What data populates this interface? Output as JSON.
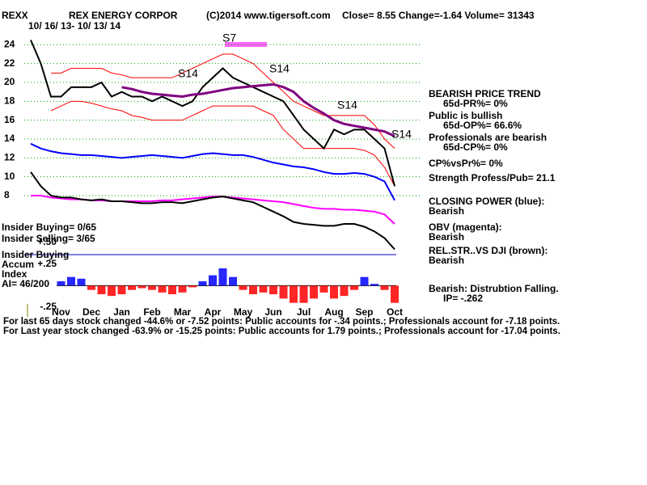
{
  "chart_data": {
    "type": "line",
    "header": [
      "REXX",
      "REX ENERGY CORPOR",
      "(C)2014 www.tigersoft.com",
      "Close=  8.55  Change=-1.64 Volume= 31343"
    ],
    "date_range": "10/ 16/ 13- 10/ 13/ 14",
    "categories": [
      null,
      null,
      null,
      "Nov",
      null,
      null,
      "Dec",
      null,
      null,
      "Jan",
      null,
      null,
      "Feb",
      null,
      null,
      "Mar",
      null,
      null,
      "Apr",
      null,
      null,
      "May",
      null,
      null,
      "Jun",
      null,
      null,
      "Jul",
      null,
      null,
      "Aug",
      null,
      null,
      "Sep",
      null,
      null,
      "Oct"
    ],
    "ylim": [
      2,
      26
    ],
    "yticks": [
      8,
      10,
      12,
      14,
      16,
      18,
      20,
      22,
      24
    ],
    "grid": true,
    "grid_color": "#00a000",
    "series": [
      {
        "color": "#ff0000",
        "values": [
          null,
          null,
          21,
          21,
          21.5,
          21.5,
          21.5,
          21.5,
          21,
          20.8,
          20.5,
          20.5,
          20.5,
          20.5,
          20.5,
          21,
          21.5,
          22,
          22.5,
          23,
          23,
          22.5,
          22,
          21,
          20,
          19,
          18,
          17.5,
          17,
          16.5,
          16.5,
          16.5,
          16.5,
          16.5,
          15.5,
          14,
          13
        ]
      },
      {
        "color": "#ff0000",
        "values": [
          null,
          null,
          17,
          17.5,
          18,
          18,
          17.8,
          17.5,
          17.2,
          17,
          16.5,
          16.3,
          16,
          16,
          16,
          16,
          16.5,
          17,
          17.5,
          17.5,
          17.5,
          17.5,
          17.5,
          17,
          16.5,
          15,
          14,
          13,
          13,
          13,
          13,
          13,
          13,
          12.8,
          12.3,
          11,
          9
        ]
      },
      {
        "color": "#000000",
        "values": [
          24.5,
          22,
          18.5,
          18.5,
          19.5,
          19.5,
          19.5,
          20,
          18.5,
          19,
          18.5,
          18.5,
          18,
          18.5,
          18,
          17.5,
          18,
          19.5,
          20.5,
          21.5,
          20.5,
          20,
          19.5,
          19,
          18.5,
          18,
          16.5,
          15,
          14,
          13,
          15,
          14.5,
          15,
          15,
          14,
          13,
          9
        ]
      },
      {
        "color": "#800080",
        "values": [
          null,
          null,
          null,
          null,
          null,
          null,
          null,
          null,
          null,
          19.5,
          19.3,
          19,
          18.8,
          18.7,
          18.6,
          18.5,
          18.7,
          18.8,
          19,
          19.2,
          19.4,
          19.5,
          19.6,
          19.7,
          19.8,
          19.5,
          19,
          18,
          17.3,
          16.7,
          16,
          15.6,
          15.4,
          15.2,
          15,
          14.8,
          14.3
        ]
      },
      {
        "color": "#0000ff",
        "values": [
          13.5,
          13,
          12.7,
          12.5,
          12.4,
          12.3,
          12.3,
          12.2,
          12.1,
          12,
          12.1,
          12.2,
          12.3,
          12.2,
          12.1,
          12,
          12.2,
          12.4,
          12.5,
          12.4,
          12.3,
          12.3,
          12.1,
          11.8,
          11.5,
          11.3,
          11.1,
          11,
          10.8,
          10.5,
          10.3,
          10.3,
          10.4,
          10.3,
          10,
          9.5,
          7.5
        ]
      },
      {
        "color": "#ff00ff",
        "values": [
          8,
          8,
          7.8,
          7.7,
          7.6,
          7.6,
          7.5,
          7.5,
          7.4,
          7.4,
          7.4,
          7.4,
          7.4,
          7.5,
          7.5,
          7.6,
          7.7,
          7.8,
          7.9,
          7.9,
          7.8,
          7.7,
          7.6,
          7.5,
          7.4,
          7.3,
          7.1,
          6.9,
          6.7,
          6.6,
          6.6,
          6.5,
          6.5,
          6.4,
          6.3,
          6,
          5
        ]
      },
      {
        "color": "#000000",
        "values": [
          10.5,
          9,
          8,
          7.8,
          7.8,
          7.6,
          7.5,
          7.6,
          7.4,
          7.4,
          7.3,
          7.2,
          7.2,
          7.3,
          7.3,
          7.2,
          7.4,
          7.6,
          7.8,
          7.9,
          7.7,
          7.5,
          7.3,
          6.8,
          6.3,
          5.8,
          5.2,
          5,
          4.9,
          4.8,
          4.8,
          5,
          5,
          4.7,
          4.2,
          3.5,
          2.3
        ]
      }
    ],
    "signals": [
      "S7",
      "S14",
      "S14",
      "S14",
      "S14"
    ],
    "accum_index": {
      "type": "bar",
      "ylim": [
        -0.25,
        0.5
      ],
      "yticks": [
        {
          "value": 0.5,
          "label": "+.50"
        },
        {
          "value": 0.25,
          "label": "+.25"
        },
        {
          "value": -0.25,
          "label": "-.25"
        }
      ],
      "pos_color": "#0000ff",
      "neg_color": "#ff0000",
      "values": [
        null,
        null,
        null,
        0.05,
        0.1,
        0.08,
        -0.05,
        -0.1,
        -0.12,
        -0.1,
        -0.05,
        -0.03,
        -0.05,
        -0.08,
        -0.1,
        -0.08,
        -0.02,
        0.05,
        0.12,
        0.2,
        0.1,
        -0.05,
        -0.1,
        -0.08,
        -0.1,
        -0.15,
        -0.2,
        -0.2,
        -0.15,
        -0.08,
        -0.15,
        -0.12,
        -0.05,
        0.1,
        0.02,
        -0.05,
        -0.2
      ]
    },
    "left_notes": [
      "Insider Buying= 0/65",
      "Insider Selling= 3/65",
      "Insider Buying",
      "Accum",
      "Index",
      "AI= 46/200"
    ],
    "right_notes": [
      "BEARISH PRICE TREND",
      "65d-PR%= 0%",
      "Public is bullish",
      "65d-OP%= 66.6%",
      "Professionals are bearish",
      "65d-CP%= 0%",
      "CP%vsPr%=  0%",
      "Strength Profess/Pub= 21.1",
      "CLOSING POWER (blue):",
      "Bearish",
      "OBV (magenta):",
      "Bearish",
      "REL.STR..VS DJI (brown):",
      "Bearish",
      "Bearish: Distrubtion Falling.",
      "IP= -.262"
    ],
    "footer": [
      "For last 65 days stock changed -44.6% or -7.52 points:  Public accounts for -.34 points.;  Professionals account for -7.18 points.",
      "For Last year stock changed -63.9% or -15.25 points:  Public accounts for  1.79 points.;  Professionals account for -17.04 points."
    ]
  }
}
